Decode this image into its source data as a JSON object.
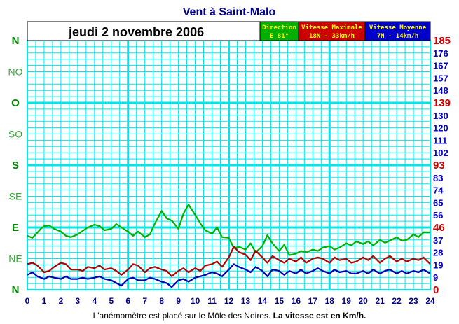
{
  "title": "Vent à Saint-Malo",
  "date": "jeudi 2 novembre 2006",
  "legend": [
    {
      "name": "Direction",
      "value": "E 81°",
      "bg": "#00b000",
      "fg": "#ffff00"
    },
    {
      "name": "Vitesse Maximale",
      "value": "18N - 33km/h",
      "bg": "#cc0000",
      "fg": "#ffff00"
    },
    {
      "name": "Vitesse Moyenne",
      "value": "7N - 14km/h",
      "bg": "#0000cc",
      "fg": "#ffff00"
    }
  ],
  "footer": {
    "text": "L'anémomètre est placé sur le Môle des Noires.",
    "bold": "La vitesse est en Km/h."
  },
  "colors": {
    "grid": "#00e5e5",
    "direction": "#00b000",
    "max": "#b00000",
    "mean": "#0000b0"
  },
  "chart_data": {
    "type": "line",
    "x_ticks": [
      "0",
      "1",
      "2",
      "3",
      "4",
      "5",
      "6",
      "7",
      "8",
      "9",
      "10",
      "11",
      "12",
      "13",
      "14",
      "15",
      "16",
      "17",
      "18",
      "19",
      "20",
      "21",
      "22",
      "23",
      "24"
    ],
    "xlim": [
      0,
      24
    ],
    "direction_axis": {
      "labels": [
        "N",
        "NO",
        "O",
        "SO",
        "S",
        "SE",
        "E",
        "NE",
        "N"
      ],
      "degrees": [
        360,
        315,
        270,
        225,
        180,
        135,
        90,
        45,
        0
      ]
    },
    "speed_axis": {
      "labels": [
        "185",
        "176",
        "167",
        "157",
        "148",
        "139",
        "130",
        "120",
        "111",
        "102",
        "93",
        "83",
        "74",
        "65",
        "56",
        "46",
        "37",
        "28",
        "19",
        "9",
        "0"
      ],
      "highlight": [
        "185",
        "139",
        "93",
        "46",
        "0"
      ],
      "ylim": [
        0,
        185
      ]
    },
    "series": [
      {
        "name": "Direction",
        "unit": "deg",
        "x": [
          0,
          0.3,
          0.5,
          0.8,
          1.0,
          1.3,
          1.6,
          2.0,
          2.3,
          2.6,
          3.0,
          3.3,
          3.6,
          4.0,
          4.3,
          4.6,
          5.0,
          5.3,
          5.6,
          6.0,
          6.3,
          6.6,
          7.0,
          7.3,
          7.6,
          8.0,
          8.3,
          8.6,
          9.0,
          9.3,
          9.6,
          10.0,
          10.3,
          10.6,
          11.0,
          11.3,
          11.6,
          12.0,
          12.3,
          12.6,
          13.0,
          13.3,
          13.6,
          14.0,
          14.3,
          14.6,
          15.0,
          15.3,
          15.6,
          16.0,
          16.3,
          16.6,
          17.0,
          17.3,
          17.6,
          18.0,
          18.3,
          18.6,
          19.0,
          19.3,
          19.6,
          20.0,
          20.3,
          20.6,
          21.0,
          21.3,
          21.6,
          22.0,
          22.3,
          22.6,
          23.0,
          23.3,
          23.6,
          24.0
        ],
        "y": [
          78,
          75,
          80,
          88,
          92,
          93,
          88,
          84,
          78,
          76,
          80,
          85,
          90,
          94,
          92,
          86,
          88,
          95,
          90,
          84,
          78,
          84,
          76,
          80,
          96,
          114,
          103,
          100,
          88,
          110,
          123,
          108,
          96,
          86,
          81,
          90,
          76,
          75,
          60,
          62,
          58,
          67,
          54,
          63,
          79,
          67,
          56,
          65,
          50,
          52,
          56,
          54,
          58,
          56,
          61,
          63,
          58,
          61,
          67,
          64,
          70,
          66,
          70,
          64,
          72,
          68,
          71,
          76,
          71,
          72,
          80,
          76,
          83,
          83
        ]
      },
      {
        "name": "Vitesse Maximale",
        "unit": "km/h",
        "x": [
          0,
          0.3,
          0.6,
          1.0,
          1.3,
          1.6,
          2.0,
          2.3,
          2.6,
          3.0,
          3.3,
          3.6,
          4.0,
          4.3,
          4.6,
          5.0,
          5.3,
          5.6,
          6.0,
          6.3,
          6.6,
          7.0,
          7.3,
          7.6,
          8.0,
          8.3,
          8.6,
          9.0,
          9.3,
          9.6,
          10.0,
          10.3,
          10.6,
          11.0,
          11.3,
          11.6,
          12.0,
          12.3,
          12.6,
          13.0,
          13.3,
          13.6,
          14.0,
          14.3,
          14.6,
          15.0,
          15.3,
          15.6,
          16.0,
          16.3,
          16.6,
          17.0,
          17.3,
          17.6,
          18.0,
          18.3,
          18.6,
          19.0,
          19.3,
          19.6,
          20.0,
          20.3,
          20.6,
          21.0,
          21.3,
          21.6,
          22.0,
          22.3,
          22.6,
          23.0,
          23.3,
          23.6,
          24.0
        ],
        "y": [
          19,
          20,
          18,
          13,
          14,
          17,
          20,
          19,
          15,
          15,
          14,
          17,
          16,
          18,
          15,
          16,
          14,
          11,
          15,
          19,
          18,
          13,
          16,
          17,
          15,
          14,
          10,
          14,
          16,
          13,
          16,
          14,
          18,
          19,
          21,
          17,
          24,
          32,
          28,
          26,
          22,
          29,
          24,
          20,
          25,
          22,
          20,
          23,
          21,
          24,
          20,
          23,
          24,
          23,
          20,
          24,
          22,
          23,
          20,
          21,
          24,
          22,
          25,
          20,
          23,
          25,
          21,
          23,
          21,
          23,
          22,
          24,
          19
        ]
      },
      {
        "name": "Vitesse Moyenne",
        "unit": "km/h",
        "x": [
          0,
          0.3,
          0.6,
          1.0,
          1.3,
          1.6,
          2.0,
          2.3,
          2.6,
          3.0,
          3.3,
          3.6,
          4.0,
          4.3,
          4.6,
          5.0,
          5.3,
          5.6,
          6.0,
          6.3,
          6.6,
          7.0,
          7.3,
          7.6,
          8.0,
          8.3,
          8.6,
          9.0,
          9.3,
          9.6,
          10.0,
          10.3,
          10.6,
          11.0,
          11.3,
          11.6,
          12.0,
          12.3,
          12.6,
          13.0,
          13.3,
          13.6,
          14.0,
          14.3,
          14.6,
          15.0,
          15.3,
          15.6,
          16.0,
          16.3,
          16.6,
          17.0,
          17.3,
          17.6,
          18.0,
          18.3,
          18.6,
          19.0,
          19.3,
          19.6,
          20.0,
          20.3,
          20.6,
          21.0,
          21.3,
          21.6,
          22.0,
          22.3,
          22.6,
          23.0,
          23.3,
          23.6,
          24.0
        ],
        "y": [
          11,
          13,
          10,
          8,
          10,
          9,
          8,
          10,
          8,
          8,
          9,
          8,
          9,
          10,
          8,
          7,
          5,
          3,
          8,
          9,
          7,
          7,
          9,
          8,
          6,
          5,
          2,
          7,
          8,
          6,
          9,
          10,
          11,
          13,
          12,
          10,
          15,
          19,
          17,
          15,
          13,
          17,
          14,
          10,
          15,
          14,
          11,
          14,
          12,
          15,
          12,
          14,
          16,
          14,
          12,
          15,
          13,
          14,
          12,
          12,
          14,
          12,
          15,
          12,
          14,
          15,
          12,
          14,
          12,
          14,
          13,
          15,
          12
        ]
      }
    ]
  }
}
